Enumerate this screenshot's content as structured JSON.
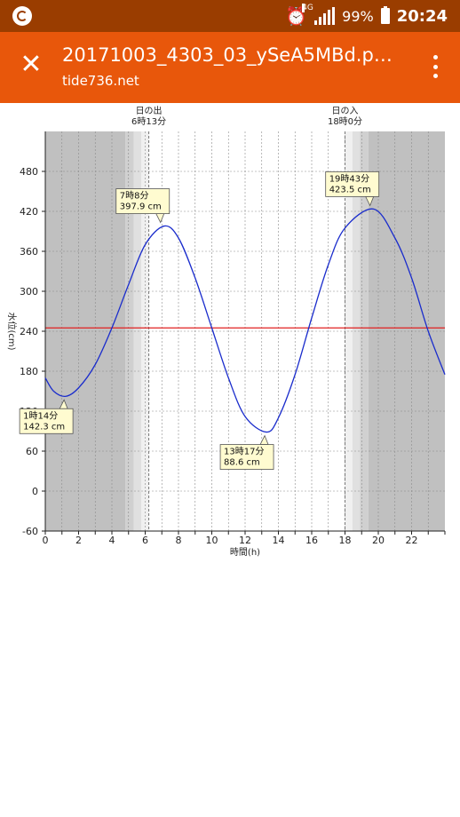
{
  "status_bar": {
    "network": "4G",
    "battery": "99%",
    "time": "20:24",
    "icons": [
      "app-icon",
      "alarm-icon",
      "signal-icon",
      "battery-icon"
    ]
  },
  "app_bar": {
    "title": "20171003_4303_03_ySeA5MBd.pn...",
    "subtitle": "tide736.net",
    "close_icon": "close-icon",
    "menu_icon": "more-vert-icon"
  },
  "chart_data": {
    "type": "line",
    "title": "",
    "xlabel": "時間(h)",
    "ylabel": "水位(cm)",
    "xlim": [
      0,
      24
    ],
    "ylim": [
      -60,
      540
    ],
    "x_ticks": [
      0,
      2,
      4,
      6,
      8,
      10,
      12,
      14,
      16,
      18,
      20,
      22
    ],
    "y_ticks": [
      -60,
      0,
      60,
      120,
      180,
      240,
      300,
      360,
      420,
      480
    ],
    "grid": true,
    "sunrise": {
      "label": "日の出",
      "time": "6時13分",
      "hour": 6.2167
    },
    "sunset": {
      "label": "日の入",
      "time": "18時0分",
      "hour": 18.0
    },
    "reference_line": {
      "y": 245,
      "color": "#e02020"
    },
    "series": [
      {
        "color": "#1a2ccc",
        "x": [
          0,
          0.5,
          1.2333,
          2,
          3,
          4,
          5,
          6,
          7.1333,
          8,
          9,
          10,
          11,
          12,
          13.2833,
          14,
          15,
          16,
          17,
          18,
          19.7167,
          21,
          22,
          23,
          24
        ],
        "y": [
          170,
          150,
          142.3,
          155,
          190,
          245,
          310,
          370,
          397.9,
          380,
          320,
          245,
          170,
          112,
          88.6,
          110,
          175,
          260,
          340,
          395,
          423.5,
          380,
          320,
          240,
          175
        ]
      }
    ],
    "annotations": [
      {
        "x": 1.2333,
        "y": 142.3,
        "time": "1時14分",
        "value": "142.3 cm"
      },
      {
        "x": 7.1333,
        "y": 397.9,
        "time": "7時8分",
        "value": "397.9 cm"
      },
      {
        "x": 13.2833,
        "y": 88.6,
        "time": "13時17分",
        "value": "88.6 cm"
      },
      {
        "x": 19.7167,
        "y": 423.5,
        "time": "19時43分",
        "value": "423.5 cm"
      }
    ],
    "night_shading": {
      "night_color": "#c0c0c0",
      "twilight_colors": [
        "#d0d0d0",
        "#e0e0e0",
        "#f0f0f0"
      ]
    }
  }
}
